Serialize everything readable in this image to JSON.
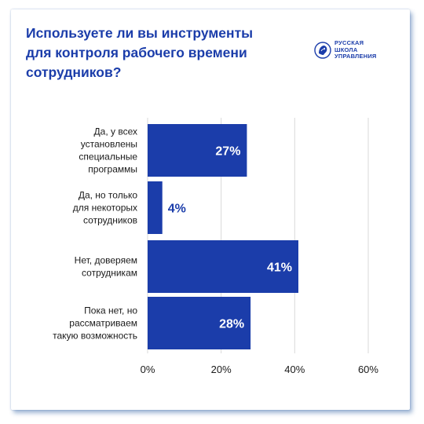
{
  "header": {
    "title_lines": [
      "Используете ли вы инструменты",
      "для контроля рабочего времени",
      "сотрудников?"
    ]
  },
  "logo": {
    "icon": "lion-head-logo-icon",
    "lines": [
      "РУССКАЯ",
      "ШКОЛА",
      "УПРАВЛЕНИЯ"
    ]
  },
  "colors": {
    "accent": "#1b3daa",
    "bar": "#1b3daa",
    "grid": "#d9d9d9",
    "label_inside": "#ffffff",
    "label_outside": "#1b3daa"
  },
  "chart_data": {
    "type": "bar",
    "orientation": "horizontal",
    "categories": [
      [
        "Да, у всех",
        "установлены",
        "специальные",
        "программы"
      ],
      [
        "Да, но только",
        "для некоторых",
        "сотрудников"
      ],
      [
        "Нет, доверяем",
        "сотрудникам"
      ],
      [
        "Пока нет, но",
        "рассматриваем",
        "такую возможность"
      ]
    ],
    "values": [
      27,
      4,
      41,
      28
    ],
    "value_labels": [
      "27%",
      "4%",
      "41%",
      "28%"
    ],
    "xlim": [
      0,
      60
    ],
    "x_ticks": [
      0,
      20,
      40,
      60
    ],
    "x_tick_labels": [
      "0%",
      "20%",
      "40%",
      "60%"
    ],
    "grid": true,
    "legend": "none"
  }
}
